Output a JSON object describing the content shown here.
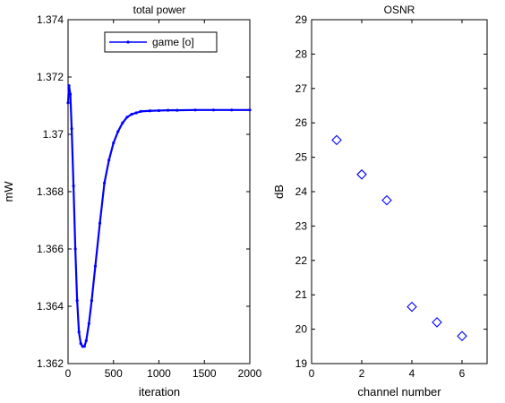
{
  "chart_data": [
    {
      "type": "line",
      "title": "total power",
      "xlabel": "iteration",
      "ylabel": "mW",
      "xlim": [
        0,
        2000
      ],
      "ylim": [
        1.362,
        1.374
      ],
      "xticks": [
        0,
        500,
        1000,
        1500,
        2000
      ],
      "xtick_labels": [
        "0",
        "500",
        "1000",
        "1500",
        "2000"
      ],
      "yticks": [
        1.362,
        1.364,
        1.366,
        1.368,
        1.37,
        1.372,
        1.374
      ],
      "ytick_labels": [
        "1.362",
        "1.364",
        "1.366",
        "1.368",
        "1.37",
        "1.372",
        "1.374"
      ],
      "legend": {
        "position": "top",
        "entries": [
          "game [o]"
        ]
      },
      "grid": false,
      "series": [
        {
          "name": "game [o]",
          "color": "#0000ff",
          "marker": "dot",
          "x": [
            0,
            10,
            25,
            40,
            60,
            80,
            100,
            120,
            140,
            160,
            180,
            200,
            230,
            260,
            300,
            350,
            400,
            450,
            500,
            550,
            600,
            650,
            700,
            750,
            800,
            900,
            1000,
            1100,
            1200,
            1400,
            1600,
            1800,
            2000
          ],
          "y": [
            1.3711,
            1.3717,
            1.3714,
            1.3702,
            1.3682,
            1.366,
            1.3642,
            1.3631,
            1.3627,
            1.3626,
            1.3626,
            1.3628,
            1.3634,
            1.3642,
            1.3654,
            1.3669,
            1.3683,
            1.3691,
            1.3697,
            1.3701,
            1.3704,
            1.3706,
            1.3707,
            1.37075,
            1.3708,
            1.37082,
            1.37083,
            1.37084,
            1.37084,
            1.37085,
            1.37085,
            1.37085,
            1.37085
          ]
        }
      ]
    },
    {
      "type": "scatter",
      "title": "OSNR",
      "xlabel": "channel number",
      "ylabel": "dB",
      "xlim": [
        0,
        7
      ],
      "ylim": [
        19,
        29
      ],
      "xticks": [
        0,
        2,
        4,
        6
      ],
      "xtick_labels": [
        "0",
        "2",
        "4",
        "6"
      ],
      "yticks": [
        19,
        20,
        21,
        22,
        23,
        24,
        25,
        26,
        27,
        28,
        29
      ],
      "ytick_labels": [
        "19",
        "20",
        "21",
        "22",
        "23",
        "24",
        "25",
        "26",
        "27",
        "28",
        "29"
      ],
      "grid": false,
      "series": [
        {
          "color": "#0000ff",
          "marker": "diamond",
          "x": [
            1,
            2,
            3,
            4,
            5,
            6
          ],
          "y": [
            25.5,
            24.5,
            23.75,
            20.65,
            20.2,
            19.8
          ]
        }
      ]
    }
  ]
}
